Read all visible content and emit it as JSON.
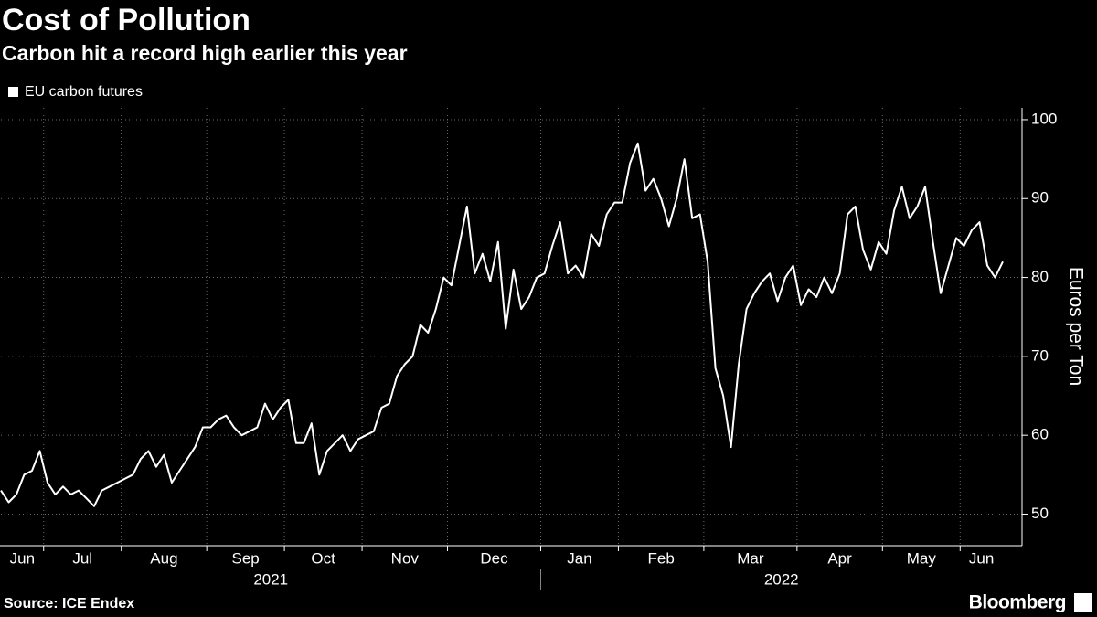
{
  "chart_data": {
    "type": "line",
    "title": "Cost of Pollution",
    "subtitle": "Carbon hit a record high earlier this year",
    "y_axis_label": "Euros per Ton",
    "source": "Source: ICE Endex",
    "brand": "Bloomberg",
    "ylim": [
      46,
      101.5
    ],
    "yticks": [
      50,
      60,
      70,
      80,
      90,
      100
    ],
    "grid": true,
    "legend": "top-left",
    "series": [
      {
        "name": "EU carbon futures",
        "color": "#ffffff"
      }
    ],
    "periods": [
      {
        "year": "2021",
        "months": [
          {
            "month": "Jun",
            "values": [
              53,
              51.5,
              52.5,
              55,
              55.5,
              58
            ]
          },
          {
            "month": "Jul",
            "values": [
              54,
              52.5,
              53.5,
              52.5,
              53,
              52,
              51,
              53,
              53.5,
              54
            ]
          },
          {
            "month": "Aug",
            "values": [
              54.5,
              55,
              57,
              58,
              56,
              57.5,
              54,
              55.5,
              57,
              58.5,
              61
            ]
          },
          {
            "month": "Sep",
            "values": [
              61,
              62,
              62.5,
              61,
              60,
              60.5,
              61,
              64,
              62,
              63.5
            ]
          },
          {
            "month": "Oct",
            "values": [
              64.5,
              59,
              59,
              61.5,
              55,
              58,
              59,
              60,
              58,
              59.5
            ]
          },
          {
            "month": "Nov",
            "values": [
              60,
              60.5,
              63.5,
              64,
              67.5,
              69,
              70,
              74,
              73,
              76,
              80
            ]
          },
          {
            "month": "Dec",
            "values": [
              79,
              84,
              89,
              80.5,
              83,
              79.5,
              84.5,
              73.5,
              81,
              76,
              77.5,
              80
            ]
          }
        ]
      },
      {
        "year": "2022",
        "months": [
          {
            "month": "Jan",
            "values": [
              80.5,
              84,
              87,
              80.5,
              81.5,
              80,
              85.5,
              84,
              88,
              89.5
            ]
          },
          {
            "month": "Feb",
            "values": [
              89.5,
              94.5,
              97,
              91,
              92.5,
              90,
              86.5,
              90,
              95,
              87.5,
              88
            ]
          },
          {
            "month": "Mar",
            "values": [
              82,
              68.5,
              65,
              58.5,
              69,
              76,
              78,
              79.5,
              80.5,
              77,
              80,
              81.5
            ]
          },
          {
            "month": "Apr",
            "values": [
              76.5,
              78.5,
              77.5,
              80,
              78,
              80.5,
              88,
              89,
              83.5,
              81,
              84.5
            ]
          },
          {
            "month": "May",
            "values": [
              83,
              88.5,
              91.5,
              87.5,
              89,
              91.5,
              84.5,
              78,
              81.5,
              85
            ]
          },
          {
            "month": "Jun",
            "values": [
              84,
              86,
              87,
              81.5,
              80,
              82
            ]
          }
        ]
      }
    ]
  }
}
